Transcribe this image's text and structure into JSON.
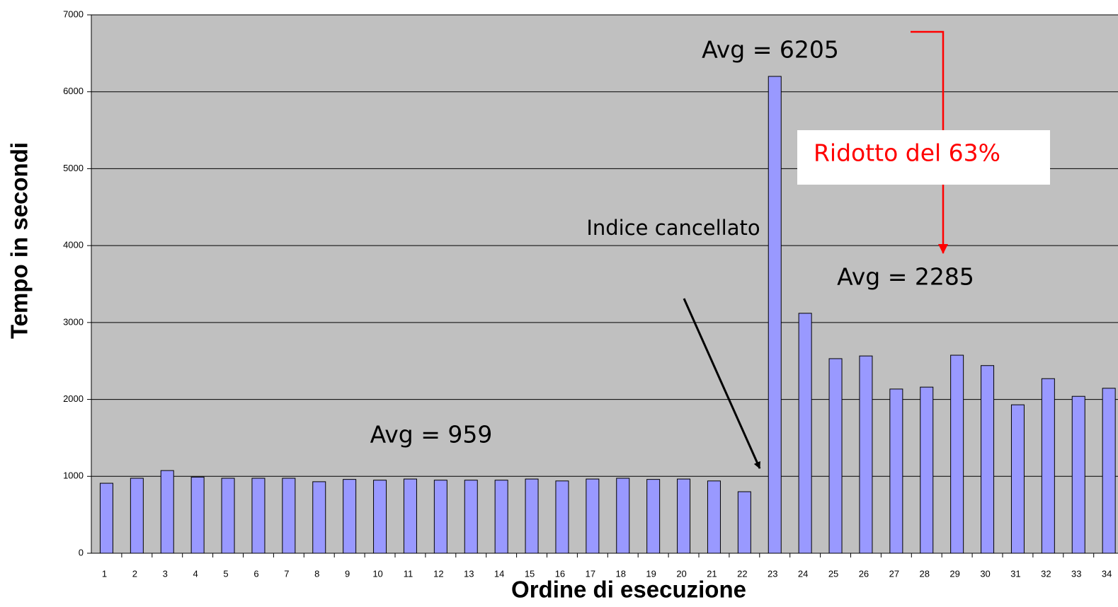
{
  "chart_data": {
    "type": "bar",
    "x_label": "Ordine di esecuzione",
    "y_label": "Tempo in secondi",
    "categories": [
      "1",
      "2",
      "3",
      "4",
      "5",
      "6",
      "7",
      "8",
      "9",
      "10",
      "11",
      "12",
      "13",
      "14",
      "15",
      "16",
      "17",
      "18",
      "19",
      "20",
      "21",
      "22",
      "23",
      "24",
      "25",
      "26",
      "27",
      "28",
      "29",
      "30",
      "31",
      "32",
      "33",
      "34"
    ],
    "values": [
      910,
      975,
      1075,
      990,
      975,
      975,
      975,
      930,
      960,
      950,
      965,
      950,
      950,
      950,
      965,
      940,
      965,
      975,
      960,
      965,
      940,
      800,
      6200,
      3120,
      2530,
      2565,
      2135,
      2160,
      2575,
      2440,
      1930,
      2270,
      2040,
      2145
    ],
    "color": "#9999ff",
    "ylim": [
      0,
      7000
    ],
    "yticks": [
      0,
      1000,
      2000,
      3000,
      4000,
      5000,
      6000,
      7000
    ],
    "grid": true,
    "annotations": [
      "Avg = 6205",
      "Avg = 2285",
      "Avg = 959",
      "Indice cancellato",
      "Ridotto del 63%"
    ]
  }
}
